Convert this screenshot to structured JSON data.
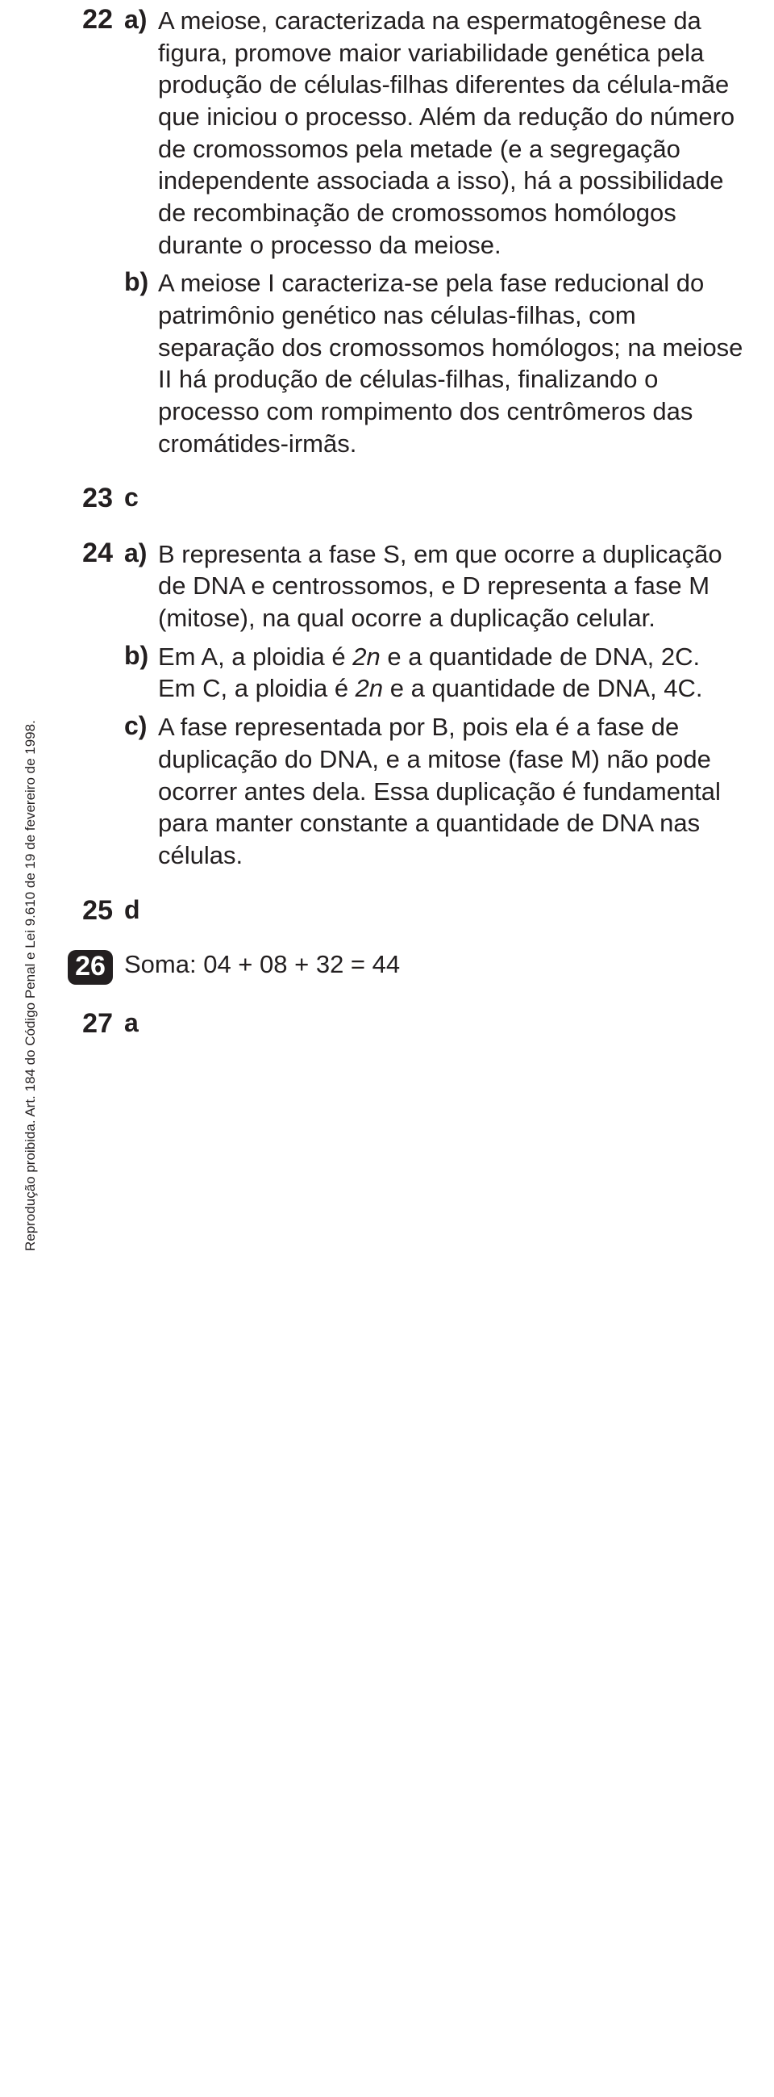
{
  "vertical_note": "Reprodução proibida. Art. 184 do Código Penal e Lei 9.610 de 19 de fevereiro de 1998.",
  "q22": {
    "num": "22",
    "a_label": "a)",
    "a_text": "A meiose, caracterizada na espermatogênese da figura, promove maior variabilidade genética pela produção de células-filhas diferentes da célula-mãe que iniciou o processo. Além da redução do número de cromossomos pela metade (e a segregação independente associada a isso), há a possibilidade de recombinação de cromossomos homólogos durante o processo da meiose.",
    "b_label": "b)",
    "b_text": "A meiose I caracteriza-se pela fase reducional do patrimônio genético nas células-filhas, com separação dos cromossomos homólogos; na meiose II há produção de células-filhas, finalizando o processo com rompimento dos centrômeros das cromátides-irmãs."
  },
  "q23": {
    "num": "23",
    "ans": "c"
  },
  "q24": {
    "num": "24",
    "a_label": "a)",
    "a_text": "B representa a fase S, em que ocorre a duplicação de DNA e centrossomos, e D representa a fase M (mitose), na qual ocorre a duplicação celular.",
    "b_label": "b)",
    "b_pre": "Em A, a ploidia é ",
    "b_mid1": " e a quantidade de DNA, 2C. Em C, a ploidia é ",
    "b_end": " e a quantidade de DNA, 4C.",
    "twon": "2n",
    "c_label": "c)",
    "c_text": "A fase representada por B, pois ela é a fase de duplicação do DNA, e a mitose (fase M) não pode ocorrer antes dela. Essa duplicação é fundamental para manter constante a quantidade de DNA nas células."
  },
  "q25": {
    "num": "25",
    "ans": "d"
  },
  "q26": {
    "num": "26",
    "soma": "Soma: 04 + 08 + 32 = 44"
  },
  "q27": {
    "num": "27",
    "ans": "a"
  }
}
